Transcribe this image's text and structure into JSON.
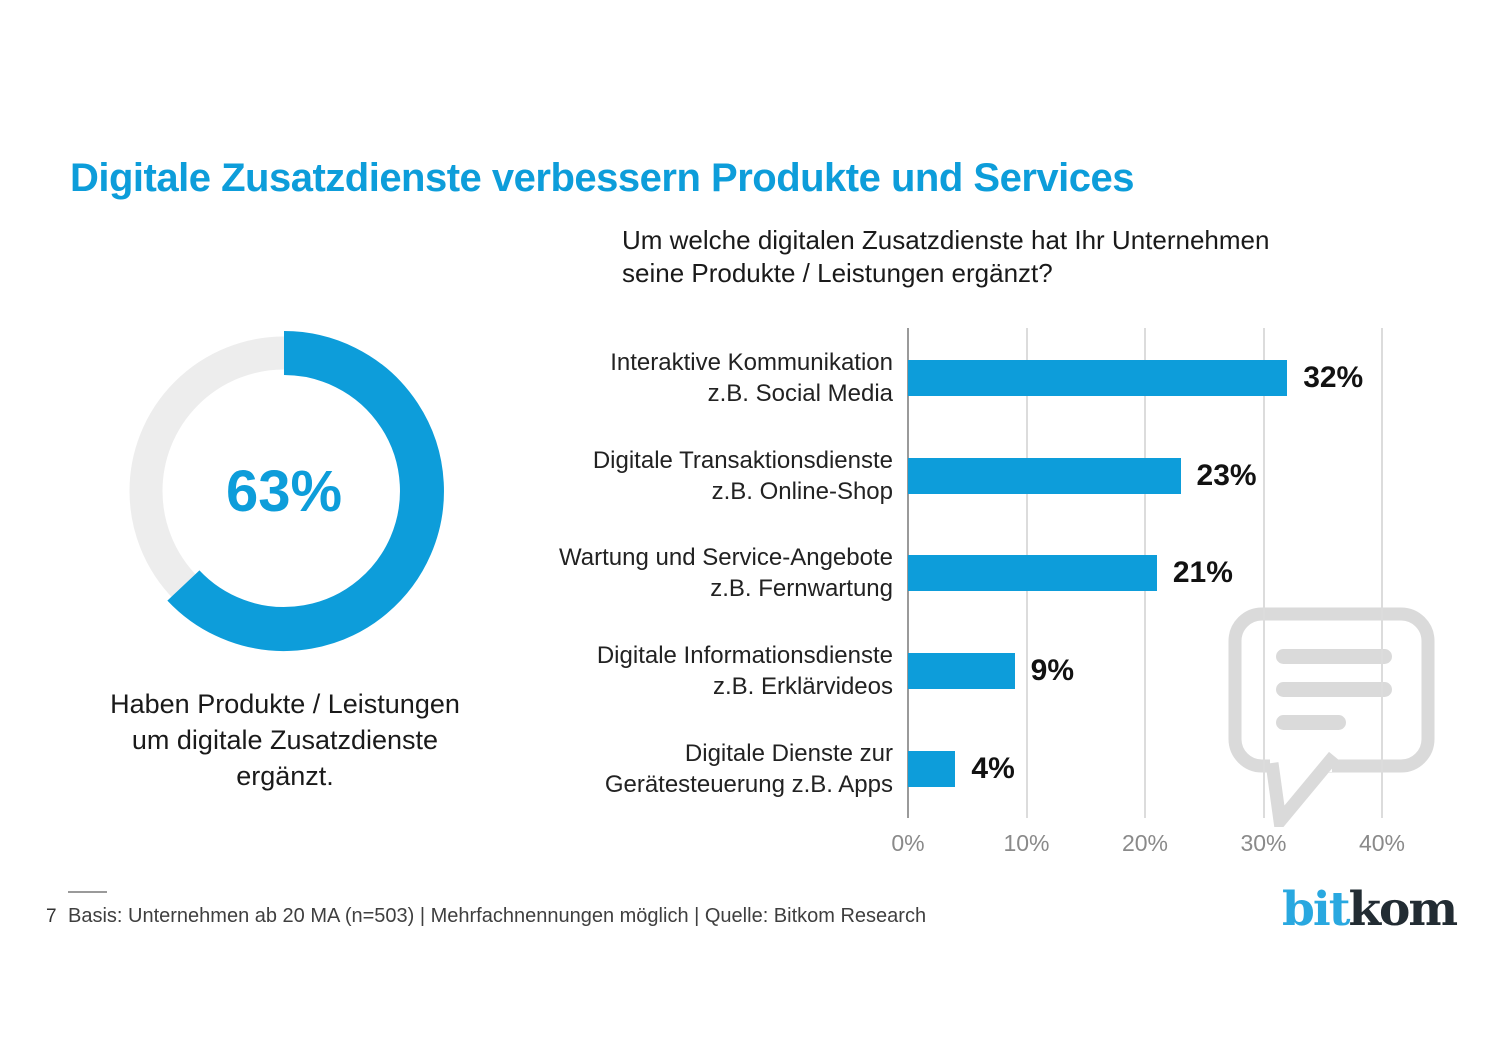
{
  "title": "Digitale Zusatzdienste verbessern Produkte und Services",
  "colors": {
    "accent_blue": "#0D9DDA",
    "donut_rest_gray": "#EDEDED",
    "grid_gray": "#DCDCDC",
    "axis_gray": "#9A9A9A",
    "watermark_gray": "#DADADA",
    "logo_blue": "#29A8E0",
    "logo_dark": "#222C33"
  },
  "chart_data": [
    {
      "type": "pie",
      "subtype": "donut",
      "value": 63,
      "label": "63%",
      "caption": "Haben Produkte / Leistungen um digitale Zusatzdienste ergänzt.",
      "slices": [
        {
          "name": "ergänzt",
          "value": 63,
          "color": "#0D9DDA"
        },
        {
          "name": "rest",
          "value": 37,
          "color": "#EDEDED"
        }
      ],
      "start_angle_deg": 0,
      "direction": "clockwise"
    },
    {
      "type": "bar",
      "orientation": "horizontal",
      "title": "Um welche digitalen Zusatzdienste hat Ihr Unternehmen seine Produkte / Leistungen ergänzt?",
      "categories": [
        "Interaktive Kommunikation z.B. Social Media",
        "Digitale Transaktionsdienste z.B. Online-Shop",
        "Wartung und Service-Angebote z.B. Fernwartung",
        "Digitale Informationsdienste z.B. Erklärvideos",
        "Digitale Dienste zur Gerätesteuerung z.B. Apps"
      ],
      "category_lines": [
        [
          "Interaktive Kommunikation",
          "z.B. Social Media"
        ],
        [
          "Digitale Transaktionsdienste",
          "z.B. Online-Shop"
        ],
        [
          "Wartung und Service-Angebote",
          "z.B. Fernwartung"
        ],
        [
          "Digitale Informationsdienste",
          "z.B. Erklärvideos"
        ],
        [
          "Digitale Dienste zur",
          "Gerätesteuerung z.B. Apps"
        ]
      ],
      "values": [
        32,
        23,
        21,
        9,
        4
      ],
      "value_labels": [
        "32%",
        "23%",
        "21%",
        "9%",
        "4%"
      ],
      "xlabel": "",
      "ylabel": "",
      "xticks": [
        "0%",
        "10%",
        "20%",
        "30%",
        "40%"
      ],
      "xtick_values": [
        0,
        10,
        20,
        30,
        40
      ],
      "xlim": [
        0,
        40
      ],
      "grid": true,
      "legend": false,
      "bar_color": "#0D9DDA"
    }
  ],
  "footer": {
    "page_number": "7",
    "text": "Basis: Unternehmen ab 20 MA (n=503) | Mehrfachnennungen möglich | Quelle: Bitkom Research"
  },
  "logo": {
    "blue": "bit",
    "dark": "kom"
  }
}
